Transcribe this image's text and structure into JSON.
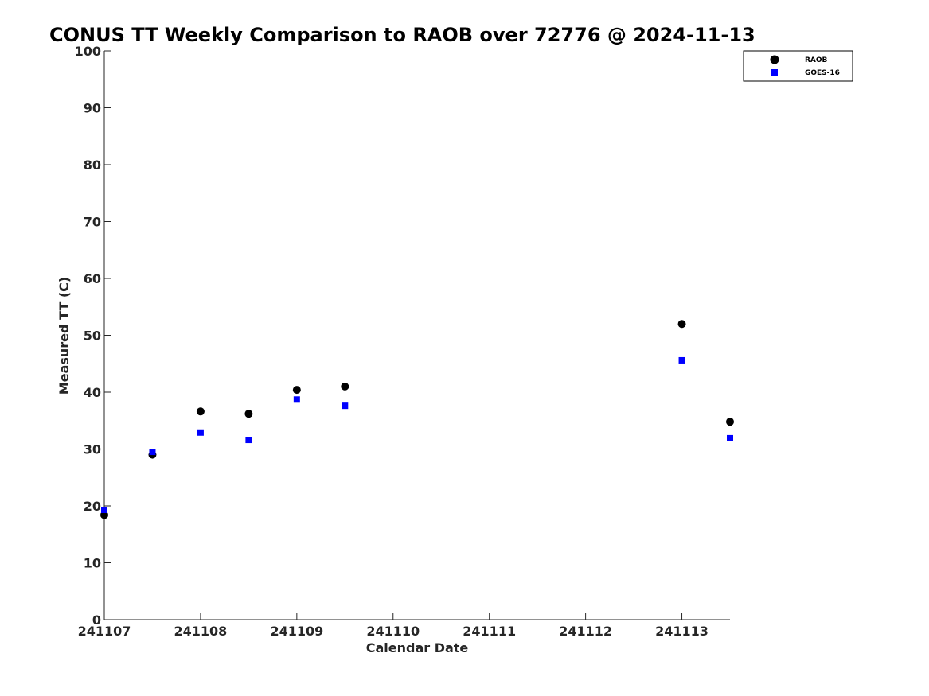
{
  "chart_data": {
    "type": "scatter",
    "title": "CONUS TT Weekly Comparison to RAOB over 72776 @ 2024-11-13",
    "xlabel": "Calendar Date",
    "ylabel": "Measured TT (C)",
    "xlim": [
      0,
      6.5
    ],
    "ylim": [
      0,
      100
    ],
    "x_tick_values": [
      0,
      1,
      2,
      3,
      4,
      5,
      6
    ],
    "x_tick_labels": [
      "241107",
      "241108",
      "241109",
      "241110",
      "241111",
      "241112",
      "241113"
    ],
    "y_ticks": [
      0,
      10,
      20,
      30,
      40,
      50,
      60,
      70,
      80,
      90,
      100
    ],
    "grid": false,
    "legend_position": "top-right",
    "series": [
      {
        "name": "RAOB",
        "marker": "circle",
        "color": "#000000",
        "points": [
          {
            "x": 0.0,
            "y": 18.4
          },
          {
            "x": 0.5,
            "y": 29.0
          },
          {
            "x": 1.0,
            "y": 36.6
          },
          {
            "x": 1.5,
            "y": 36.2
          },
          {
            "x": 2.0,
            "y": 40.4
          },
          {
            "x": 2.5,
            "y": 41.0
          },
          {
            "x": 6.0,
            "y": 52.0
          },
          {
            "x": 6.5,
            "y": 34.8
          }
        ]
      },
      {
        "name": "GOES-16",
        "marker": "square",
        "color": "#0000ff",
        "points": [
          {
            "x": 0.0,
            "y": 19.3
          },
          {
            "x": 0.5,
            "y": 29.5
          },
          {
            "x": 1.0,
            "y": 32.9
          },
          {
            "x": 1.5,
            "y": 31.6
          },
          {
            "x": 2.0,
            "y": 38.7
          },
          {
            "x": 2.5,
            "y": 37.6
          },
          {
            "x": 6.0,
            "y": 45.6
          },
          {
            "x": 6.5,
            "y": 31.9
          }
        ]
      }
    ]
  }
}
